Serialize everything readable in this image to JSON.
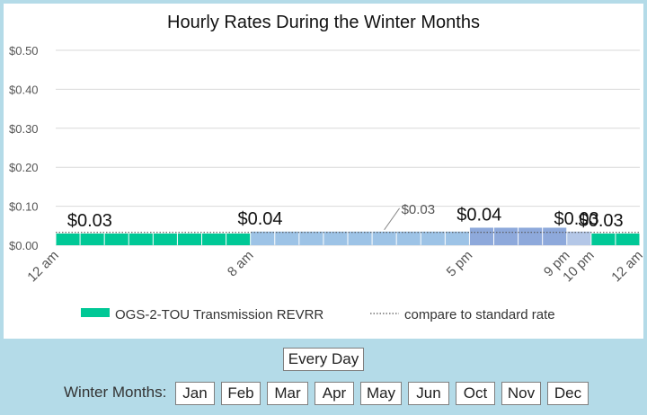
{
  "chart_data": {
    "type": "bar",
    "title": "Hourly Rates During the Winter Months",
    "y_ticks": [
      "$0.50",
      "$0.40",
      "$0.30",
      "$0.20",
      "$0.10",
      "$0.00"
    ],
    "ylim": [
      0,
      0.5
    ],
    "hours": 24,
    "values": [
      0.03,
      0.03,
      0.03,
      0.03,
      0.03,
      0.03,
      0.03,
      0.03,
      0.035,
      0.035,
      0.035,
      0.035,
      0.035,
      0.035,
      0.035,
      0.035,
      0.035,
      0.045,
      0.045,
      0.045,
      0.045,
      0.035,
      0.03,
      0.03
    ],
    "colors": [
      "#00c896",
      "#00c896",
      "#00c896",
      "#00c896",
      "#00c896",
      "#00c896",
      "#00c896",
      "#00c896",
      "#9dc3e6",
      "#9dc3e6",
      "#9dc3e6",
      "#9dc3e6",
      "#9dc3e6",
      "#9dc3e6",
      "#9dc3e6",
      "#9dc3e6",
      "#9dc3e6",
      "#8ea9db",
      "#8ea9db",
      "#8ea9db",
      "#8ea9db",
      "#b4c7e7",
      "#00c896",
      "#00c896"
    ],
    "standard_rate": 0.033,
    "x_ticks": [
      {
        "hour": 0,
        "label": "12 am"
      },
      {
        "hour": 8,
        "label": "8 am"
      },
      {
        "hour": 17,
        "label": "5 pm"
      },
      {
        "hour": 21,
        "label": "9 pm"
      },
      {
        "hour": 22,
        "label": "10 pm"
      },
      {
        "hour": 24,
        "label": "12 am"
      }
    ],
    "data_labels": [
      {
        "hour": 1,
        "label": "$0.03",
        "size": "large"
      },
      {
        "hour": 8,
        "label": "$0.04",
        "size": "large"
      },
      {
        "hour": 13,
        "label": "$0.03",
        "size": "small"
      },
      {
        "hour": 17,
        "label": "$0.04",
        "size": "large"
      },
      {
        "hour": 21,
        "label": "$0.03",
        "size": "large"
      },
      {
        "hour": 22,
        "label": "$0.03",
        "size": "large"
      }
    ],
    "legend": [
      {
        "name": "OGS-2-TOU Transmission REVRR",
        "color": "#00c896",
        "style": "swatch"
      },
      {
        "name": "compare to standard rate",
        "color": "#555555",
        "style": "dotted"
      }
    ],
    "legend_position": "bottom",
    "grid": true
  },
  "controls": {
    "every_day_label": "Every Day",
    "filter_label": "Winter Months:",
    "months": [
      "Jan",
      "Feb",
      "Mar",
      "Apr",
      "May",
      "Jun",
      "Oct",
      "Nov",
      "Dec"
    ]
  }
}
